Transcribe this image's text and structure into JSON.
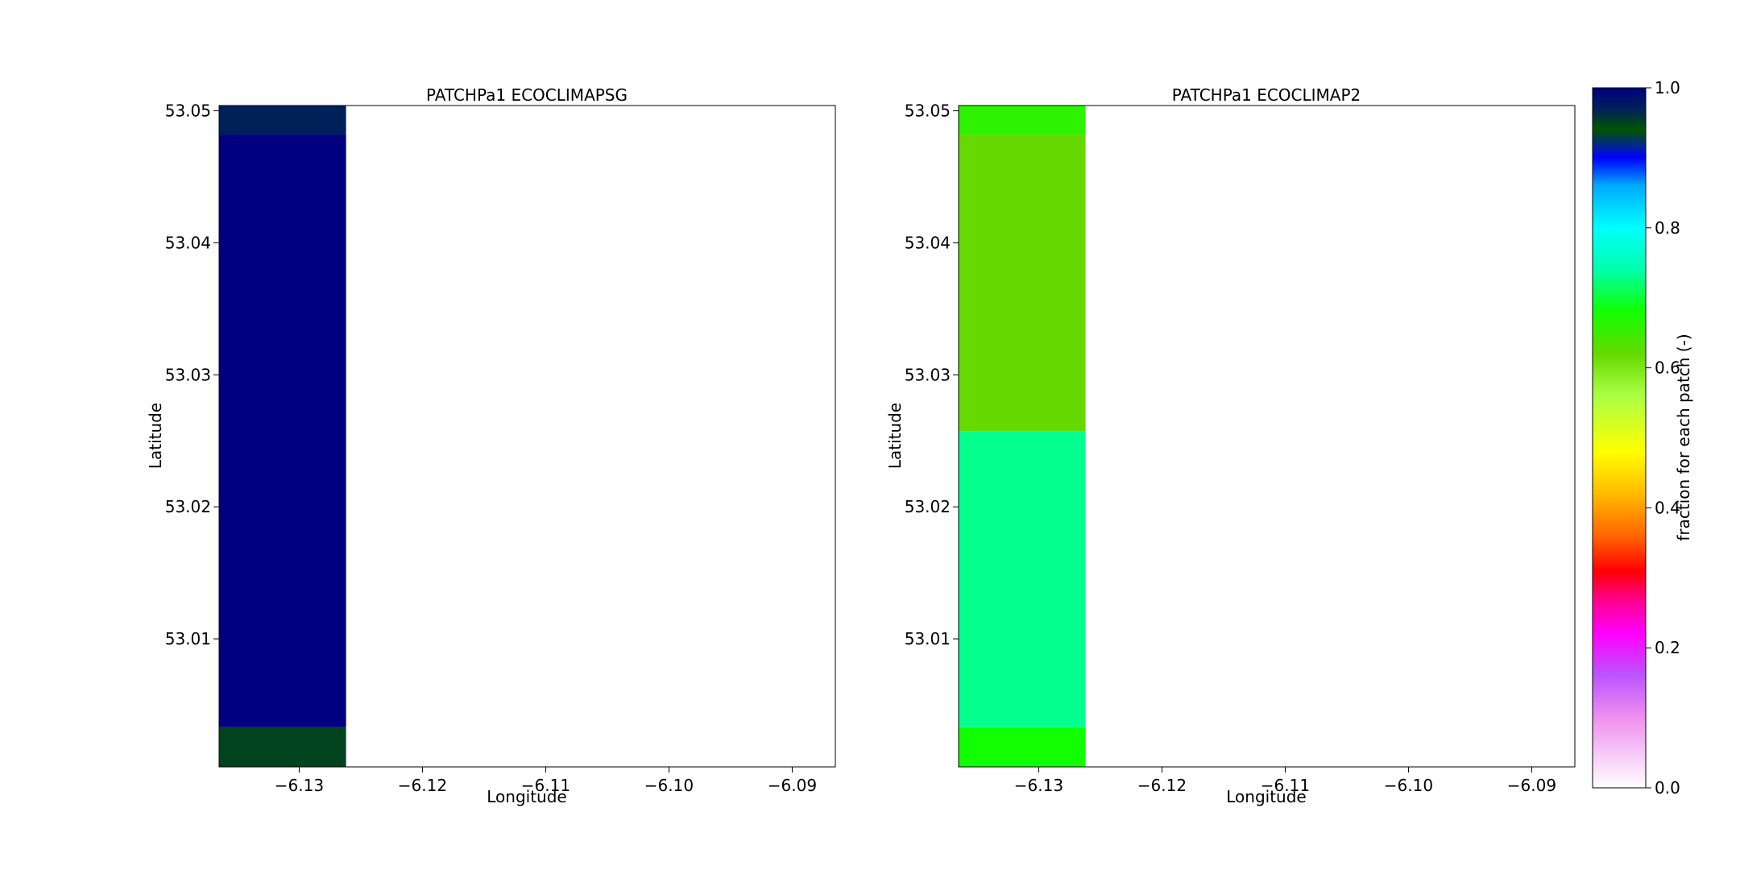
{
  "chart_data": [
    {
      "type": "heatmap",
      "title": "PATCHPa1 ECOCLIMAPSG",
      "xlabel": "Longitude",
      "ylabel": "Latitude",
      "xlim": [
        -6.1365,
        -6.0865
      ],
      "ylim": [
        53.0003,
        53.0504
      ],
      "xticks": [
        -6.13,
        -6.12,
        -6.11,
        -6.1,
        -6.09
      ],
      "xticklabels": [
        "−6.13",
        "−6.12",
        "−6.11",
        "−6.10",
        "−6.09"
      ],
      "yticks": [
        53.01,
        53.02,
        53.03,
        53.04,
        53.05
      ],
      "yticklabels": [
        "53.01",
        "53.02",
        "53.03",
        "53.04",
        "53.05"
      ],
      "cells": [
        {
          "lon": [
            -6.1365,
            -6.1262
          ],
          "lat": [
            53.0003,
            53.0033
          ],
          "value": 0.95
        },
        {
          "lon": [
            -6.1365,
            -6.1262
          ],
          "lat": [
            53.0033,
            53.0482
          ],
          "value": 1.0
        },
        {
          "lon": [
            -6.1365,
            -6.1262
          ],
          "lat": [
            53.0482,
            53.0504
          ],
          "value": 0.97
        }
      ]
    },
    {
      "type": "heatmap",
      "title": "PATCHPa1 ECOCLIMAP2",
      "xlabel": "Longitude",
      "ylabel": "Latitude",
      "xlim": [
        -6.1365,
        -6.0865
      ],
      "ylim": [
        53.0003,
        53.0504
      ],
      "xticks": [
        -6.13,
        -6.12,
        -6.11,
        -6.1,
        -6.09
      ],
      "xticklabels": [
        "−6.13",
        "−6.12",
        "−6.11",
        "−6.10",
        "−6.09"
      ],
      "yticks": [
        53.01,
        53.02,
        53.03,
        53.04,
        53.05
      ],
      "yticklabels": [
        "53.01",
        "53.02",
        "53.03",
        "53.04",
        "53.05"
      ],
      "cells": [
        {
          "lon": [
            -6.1365,
            -6.1262
          ],
          "lat": [
            53.0003,
            53.0033
          ],
          "value": 0.68
        },
        {
          "lon": [
            -6.1365,
            -6.1262
          ],
          "lat": [
            53.0033,
            53.0257
          ],
          "value": 0.73
        },
        {
          "lon": [
            -6.1365,
            -6.1262
          ],
          "lat": [
            53.0257,
            53.0482
          ],
          "value": 0.62
        },
        {
          "lon": [
            -6.1365,
            -6.1262
          ],
          "lat": [
            53.0482,
            53.0504
          ],
          "value": 0.66
        }
      ]
    }
  ],
  "colorbar": {
    "label": "fraction for each patch (-)",
    "range": [
      0.0,
      1.0
    ],
    "ticks": [
      0.0,
      0.2,
      0.4,
      0.6,
      0.8,
      1.0
    ],
    "ticklabels": [
      "0.0",
      "0.2",
      "0.4",
      "0.6",
      "0.8",
      "1.0"
    ],
    "colormap": [
      [
        0.0,
        "#ffffff"
      ],
      [
        0.1,
        "#ee90ee"
      ],
      [
        0.16,
        "#bb55ff"
      ],
      [
        0.22,
        "#ff00ff"
      ],
      [
        0.27,
        "#ff0088"
      ],
      [
        0.31,
        "#ff0000"
      ],
      [
        0.36,
        "#ff6600"
      ],
      [
        0.42,
        "#ffbb00"
      ],
      [
        0.48,
        "#ffff00"
      ],
      [
        0.56,
        "#aaff44"
      ],
      [
        0.62,
        "#66d900"
      ],
      [
        0.68,
        "#11ff00"
      ],
      [
        0.74,
        "#00ffaa"
      ],
      [
        0.8,
        "#00ffff"
      ],
      [
        0.86,
        "#00aaff"
      ],
      [
        0.9,
        "#0000ff"
      ],
      [
        0.94,
        "#005500"
      ],
      [
        0.97,
        "#00205a"
      ],
      [
        1.0,
        "#000080"
      ]
    ]
  }
}
